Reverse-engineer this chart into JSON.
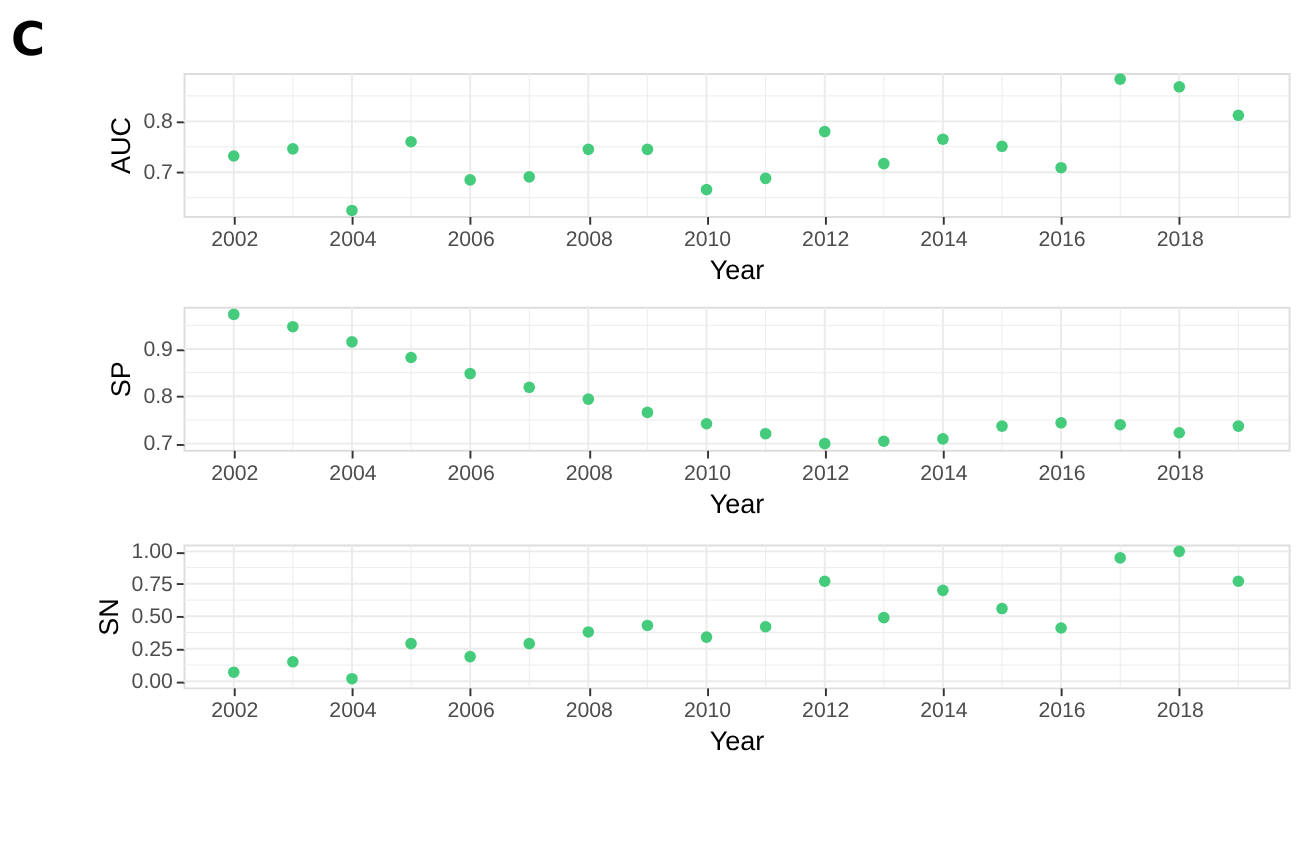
{
  "chart_data": [
    {
      "type": "scatter",
      "title": "C",
      "xlabel": "Year",
      "ylabel": "AUC",
      "marker": "circle",
      "grid": true,
      "x": [
        2002,
        2003,
        2004,
        2005,
        2006,
        2007,
        2008,
        2009,
        2010,
        2011,
        2012,
        2013,
        2014,
        2015,
        2016,
        2017,
        2018,
        2019
      ],
      "series": [
        {
          "color": "#44cc7c",
          "values": [
            0.732,
            0.746,
            0.625,
            0.76,
            0.685,
            0.691,
            0.745,
            0.745,
            0.666,
            0.688,
            0.78,
            0.717,
            0.765,
            0.751,
            0.709,
            0.883,
            0.868,
            0.812
          ]
        }
      ],
      "xlim": [
        2001.15,
        2019.85
      ],
      "ylim": [
        0.614,
        0.895
      ],
      "xticks": [
        2002,
        {
          "value": 2003,
          "label": null
        },
        2004,
        {
          "value": 2005,
          "label": null
        },
        2006,
        {
          "value": 2007,
          "label": null
        },
        2008,
        {
          "value": 2009,
          "label": null
        },
        2010,
        {
          "value": 2011,
          "label": null
        },
        2012,
        {
          "value": 2013,
          "label": null
        },
        2014,
        {
          "value": 2015,
          "label": null
        },
        2016,
        {
          "value": 2017,
          "label": null
        },
        2018,
        {
          "value": 2019,
          "label": null
        }
      ],
      "yticks": [
        {
          "value": 0.65,
          "label": null
        },
        0.7,
        {
          "value": 0.75,
          "label": null
        },
        0.8,
        {
          "value": 0.85,
          "label": null
        }
      ]
    },
    {
      "type": "scatter",
      "xlabel": "Year",
      "ylabel": "SP",
      "marker": "circle",
      "grid": true,
      "x": [
        2002,
        2003,
        2004,
        2005,
        2006,
        2007,
        2008,
        2009,
        2010,
        2011,
        2012,
        2013,
        2014,
        2015,
        2016,
        2017,
        2018,
        2019
      ],
      "series": [
        {
          "color": "#44cc7c",
          "values": [
            0.973,
            0.947,
            0.915,
            0.882,
            0.848,
            0.819,
            0.794,
            0.766,
            0.742,
            0.721,
            0.7,
            0.705,
            0.71,
            0.737,
            0.744,
            0.74,
            0.723,
            0.737
          ]
        }
      ],
      "xlim": [
        2001.15,
        2019.85
      ],
      "ylim": [
        0.687,
        0.989
      ],
      "xticks": [
        2002,
        {
          "value": 2003,
          "label": null
        },
        2004,
        {
          "value": 2005,
          "label": null
        },
        2006,
        {
          "value": 2007,
          "label": null
        },
        2008,
        {
          "value": 2009,
          "label": null
        },
        2010,
        {
          "value": 2011,
          "label": null
        },
        2012,
        {
          "value": 2013,
          "label": null
        },
        2014,
        {
          "value": 2015,
          "label": null
        },
        2016,
        {
          "value": 2017,
          "label": null
        },
        2018,
        {
          "value": 2019,
          "label": null
        }
      ],
      "yticks": [
        0.7,
        {
          "value": 0.75,
          "label": null
        },
        0.8,
        {
          "value": 0.85,
          "label": null
        },
        0.9,
        {
          "value": 0.95,
          "label": null
        }
      ]
    },
    {
      "type": "scatter",
      "xlabel": "Year",
      "ylabel": "SN",
      "marker": "circle",
      "grid": true,
      "x": [
        2002,
        2003,
        2004,
        2005,
        2006,
        2007,
        2008,
        2009,
        2010,
        2011,
        2012,
        2013,
        2014,
        2015,
        2016,
        2017,
        2018,
        2019
      ],
      "series": [
        {
          "color": "#44cc7c",
          "values": [
            0.07,
            0.15,
            0.02,
            0.29,
            0.19,
            0.29,
            0.38,
            0.43,
            0.34,
            0.42,
            0.77,
            0.49,
            0.7,
            0.56,
            0.41,
            0.95,
            1.0,
            0.77
          ]
        }
      ],
      "xlim": [
        2001.15,
        2019.85
      ],
      "ylim": [
        -0.047,
        1.053
      ],
      "xticks": [
        2002,
        {
          "value": 2003,
          "label": null
        },
        2004,
        {
          "value": 2005,
          "label": null
        },
        2006,
        {
          "value": 2007,
          "label": null
        },
        2008,
        {
          "value": 2009,
          "label": null
        },
        2010,
        {
          "value": 2011,
          "label": null
        },
        2012,
        {
          "value": 2013,
          "label": null
        },
        2014,
        {
          "value": 2015,
          "label": null
        },
        2016,
        {
          "value": 2017,
          "label": null
        },
        2018,
        {
          "value": 2019,
          "label": null
        }
      ],
      "yticks": [
        {
          "value": 0,
          "label": "0.00"
        },
        {
          "value": 0.125,
          "label": null
        },
        {
          "value": 0.25,
          "label": "0.25"
        },
        {
          "value": 0.375,
          "label": null
        },
        {
          "value": 0.5,
          "label": "0.50"
        },
        {
          "value": 0.625,
          "label": null
        },
        {
          "value": 0.75,
          "label": "0.75"
        },
        {
          "value": 0.875,
          "label": null
        },
        {
          "value": 1,
          "label": "1.00"
        }
      ]
    }
  ]
}
